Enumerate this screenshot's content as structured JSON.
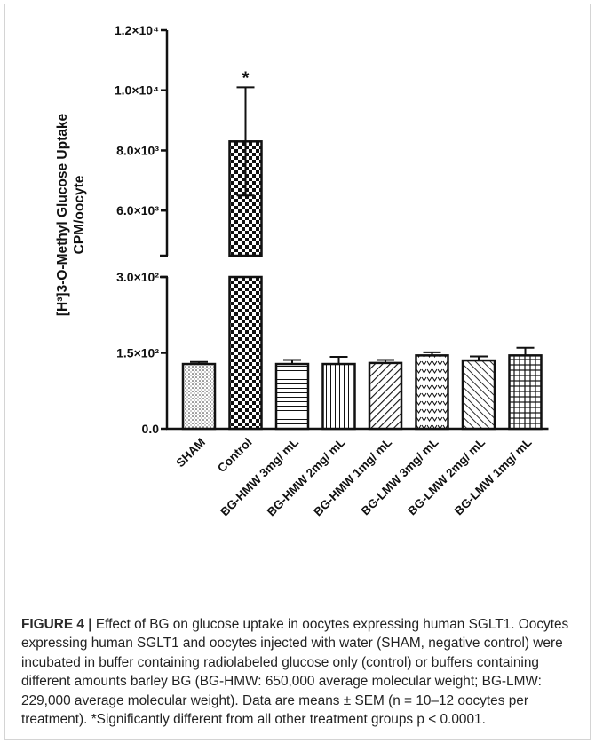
{
  "chart_data": {
    "type": "bar",
    "categories": [
      "SHAM",
      "Control",
      "BG-HMW 3mg/ mL",
      "BG-HMW 2mg/ mL",
      "BG-HMW 1mg/ mL",
      "BG-LMW 3mg/ mL",
      "BG-LMW 2mg/ mL",
      "BG-LMW 1mg/ mL"
    ],
    "values": [
      128,
      8300,
      128,
      128,
      130,
      145,
      135,
      145
    ],
    "errors": [
      4,
      1800,
      8,
      14,
      6,
      6,
      8,
      15
    ],
    "ylabel_line1": "[H³]3-O-Methyl Glucose Uptake",
    "ylabel_line2": "CPM/oocyte",
    "y_axis_break": {
      "lower": [
        0,
        300
      ],
      "upper": [
        4500,
        12000
      ]
    },
    "y_ticks": [
      {
        "value": 0,
        "label": "0.0"
      },
      {
        "value": 150,
        "label": "1.5×10²"
      },
      {
        "value": 300,
        "label": "3.0×10²"
      },
      {
        "value": 6000,
        "label": "6.0×10³"
      },
      {
        "value": 8000,
        "label": "8.0×10³"
      },
      {
        "value": 10000,
        "label": "1.0×10⁴"
      },
      {
        "value": 12000,
        "label": "1.2×10⁴"
      }
    ],
    "annotations": [
      {
        "category": "Control",
        "text": "*"
      }
    ],
    "patterns": [
      "dots",
      "checker",
      "hlines",
      "vlines",
      "diagonal",
      "chevrons",
      "diagonal-back",
      "grid"
    ],
    "grid": false,
    "legend": "none"
  },
  "caption": {
    "label": "FIGURE 4 |",
    "text": " Effect of BG on glucose uptake in oocytes expressing human SGLT1. Oocytes expressing human SGLT1 and oocytes injected with water (SHAM, negative control) were incubated in buffer containing radiolabeled glucose only (control) or buffers containing different amounts barley BG (BG-HMW: 650,000 average molecular weight; BG-LMW: 229,000 average molecular weight). Data are means ± SEM (n = 10–12 oocytes per treatment). *Significantly different from all other treatment groups p < 0.0001."
  }
}
